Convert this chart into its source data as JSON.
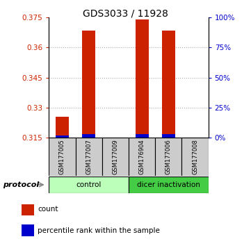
{
  "title": "GDS3033 / 11928",
  "samples": [
    "GSM177005",
    "GSM177007",
    "GSM177009",
    "GSM176904",
    "GSM177006",
    "GSM177008"
  ],
  "red_values": [
    0.3255,
    0.3685,
    0.315,
    0.374,
    0.3685,
    0.315
  ],
  "blue_values": [
    0.3162,
    0.3168,
    0.3152,
    0.3168,
    0.3168,
    0.3152
  ],
  "y_min": 0.315,
  "y_max": 0.375,
  "y_ticks_left": [
    0.315,
    0.33,
    0.345,
    0.36,
    0.375
  ],
  "y_ticks_right": [
    0,
    25,
    50,
    75,
    100
  ],
  "bar_width": 0.5,
  "red_color": "#cc2200",
  "blue_color": "#0000cc",
  "groups": [
    {
      "label": "control",
      "indices": [
        0,
        1,
        2
      ],
      "color": "#bbffbb"
    },
    {
      "label": "dicer inactivation",
      "indices": [
        3,
        4,
        5
      ],
      "color": "#44cc44"
    }
  ],
  "protocol_label": "protocol",
  "legend_items": [
    {
      "color": "#cc2200",
      "label": "count"
    },
    {
      "color": "#0000cc",
      "label": "percentile rank within the sample"
    }
  ],
  "sample_box_color": "#cccccc",
  "grid_color": "#888888",
  "title_fontsize": 10
}
